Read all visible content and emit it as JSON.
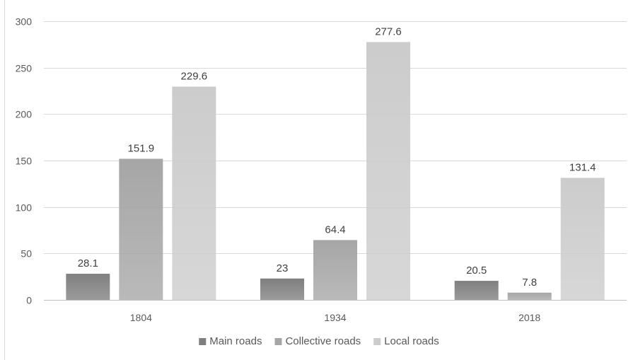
{
  "chart_data": {
    "type": "bar",
    "title": "",
    "xlabel": "",
    "ylabel": "",
    "categories": [
      "1804",
      "1934",
      "2018"
    ],
    "series": [
      {
        "name": "Main roads",
        "values": [
          28.1,
          23,
          20.5
        ],
        "color": "#7f7f7f"
      },
      {
        "name": "Collective roads",
        "values": [
          151.9,
          64.4,
          7.8
        ],
        "color": "#a6a6a6"
      },
      {
        "name": "Local roads",
        "values": [
          229.6,
          277.6,
          131.4
        ],
        "color": "#cccccc"
      }
    ],
    "ylim": [
      0,
      300
    ],
    "yticks": [
      0,
      50,
      100,
      150,
      200,
      250,
      300
    ],
    "grid": true,
    "legend_position": "bottom",
    "data_labels": true
  }
}
